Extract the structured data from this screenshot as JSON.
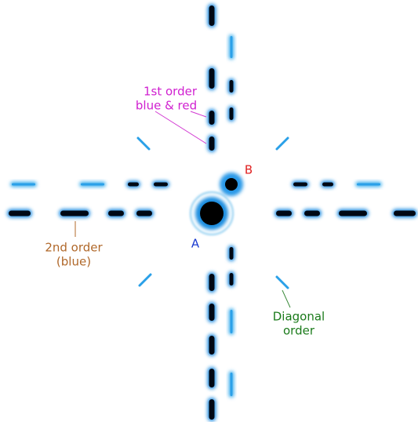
{
  "annotations": [
    {
      "lines": [
        "1st order",
        "blue & red"
      ]
    },
    {
      "lines": [
        "B"
      ]
    },
    {
      "lines": [
        "A"
      ]
    },
    {
      "lines": [
        "2nd order",
        "(blue)"
      ]
    },
    {
      "lines": [
        "Diagonal",
        "order"
      ]
    }
  ]
}
